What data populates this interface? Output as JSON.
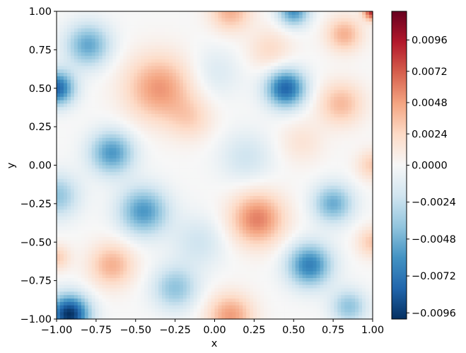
{
  "chart_data": {
    "type": "heatmap",
    "title": "",
    "xlabel": "x",
    "ylabel": "y",
    "xlim": [
      -1,
      1
    ],
    "ylim": [
      -1,
      1
    ],
    "xticks": [
      "−1.00",
      "−0.75",
      "−0.50",
      "−0.25",
      "0.00",
      "0.25",
      "0.50",
      "0.75",
      "1.00"
    ],
    "yticks": [
      "−1.00",
      "−0.75",
      "−0.50",
      "−0.25",
      "0.00",
      "0.25",
      "0.50",
      "0.75",
      "1.00"
    ],
    "xtick_values": [
      -1,
      -0.75,
      -0.5,
      -0.25,
      0,
      0.25,
      0.5,
      0.75,
      1
    ],
    "ytick_values": [
      -1,
      -0.75,
      -0.5,
      -0.25,
      0,
      0.25,
      0.5,
      0.75,
      1
    ],
    "colormap": "RdBu_r",
    "norm": {
      "vmin": -0.01,
      "vcenter": 0,
      "vmax": 0.0118
    },
    "colorbar_ticks": [
      "0.0096",
      "0.0072",
      "0.0048",
      "0.0024",
      "0.0000",
      "−0.0024",
      "−0.0048",
      "−0.0072",
      "−0.0096"
    ],
    "colorbar_tick_values": [
      0.0096,
      0.0072,
      0.0048,
      0.0024,
      0,
      -0.0024,
      -0.0048,
      -0.0072,
      -0.0096
    ],
    "colormap_stops": [
      "#053061",
      "#2166ac",
      "#4393c3",
      "#92c5de",
      "#d1e5f0",
      "#f7f7f7",
      "#fddbc7",
      "#f4a582",
      "#d6604d",
      "#b2182b",
      "#67001f"
    ],
    "field_components": [
      {
        "x": -0.35,
        "y": 0.5,
        "amp": 0.0052,
        "s": 0.15
      },
      {
        "x": 0.27,
        "y": -0.35,
        "amp": 0.006,
        "s": 0.12
      },
      {
        "x": -0.65,
        "y": -0.65,
        "amp": 0.0042,
        "s": 0.1
      },
      {
        "x": 0.1,
        "y": -0.98,
        "amp": 0.005,
        "s": 0.1
      },
      {
        "x": 0.82,
        "y": 0.85,
        "amp": 0.0042,
        "s": 0.08
      },
      {
        "x": 0.8,
        "y": 0.4,
        "amp": 0.0038,
        "s": 0.1
      },
      {
        "x": 0.1,
        "y": 1.0,
        "amp": 0.0042,
        "s": 0.09
      },
      {
        "x": 1.0,
        "y": 1.0,
        "amp": 0.009,
        "s": 0.04
      },
      {
        "x": -0.15,
        "y": 0.3,
        "amp": 0.0022,
        "s": 0.1
      },
      {
        "x": 0.55,
        "y": 0.15,
        "amp": 0.0016,
        "s": 0.1
      },
      {
        "x": 1.0,
        "y": -0.5,
        "amp": 0.0032,
        "s": 0.07
      },
      {
        "x": 1.0,
        "y": 0.0,
        "amp": 0.003,
        "s": 0.07
      },
      {
        "x": -1.0,
        "y": -0.6,
        "amp": 0.003,
        "s": 0.06
      },
      {
        "x": 0.35,
        "y": 0.75,
        "amp": 0.0022,
        "s": 0.1
      },
      {
        "x": -0.8,
        "y": 0.78,
        "amp": -0.0052,
        "s": 0.1
      },
      {
        "x": 0.45,
        "y": 0.5,
        "amp": -0.008,
        "s": 0.09
      },
      {
        "x": -0.65,
        "y": 0.08,
        "amp": -0.0058,
        "s": 0.1
      },
      {
        "x": -0.45,
        "y": -0.3,
        "amp": -0.0058,
        "s": 0.11
      },
      {
        "x": -0.92,
        "y": -0.97,
        "amp": -0.01,
        "s": 0.09
      },
      {
        "x": 0.6,
        "y": -0.65,
        "amp": -0.0068,
        "s": 0.1
      },
      {
        "x": 0.75,
        "y": -0.25,
        "amp": -0.005,
        "s": 0.09
      },
      {
        "x": -1.0,
        "y": 0.5,
        "amp": -0.008,
        "s": 0.08
      },
      {
        "x": 0.5,
        "y": 1.0,
        "amp": -0.006,
        "s": 0.07
      },
      {
        "x": -0.25,
        "y": -0.8,
        "amp": -0.004,
        "s": 0.1
      },
      {
        "x": 0.2,
        "y": 0.05,
        "amp": -0.002,
        "s": 0.12
      },
      {
        "x": 0.85,
        "y": -0.92,
        "amp": -0.004,
        "s": 0.08
      },
      {
        "x": -1.0,
        "y": -0.2,
        "amp": -0.004,
        "s": 0.1
      },
      {
        "x": -0.1,
        "y": -0.5,
        "amp": -0.002,
        "s": 0.12
      },
      {
        "x": 0.0,
        "y": 0.6,
        "amp": -0.0015,
        "s": 0.12
      }
    ]
  }
}
